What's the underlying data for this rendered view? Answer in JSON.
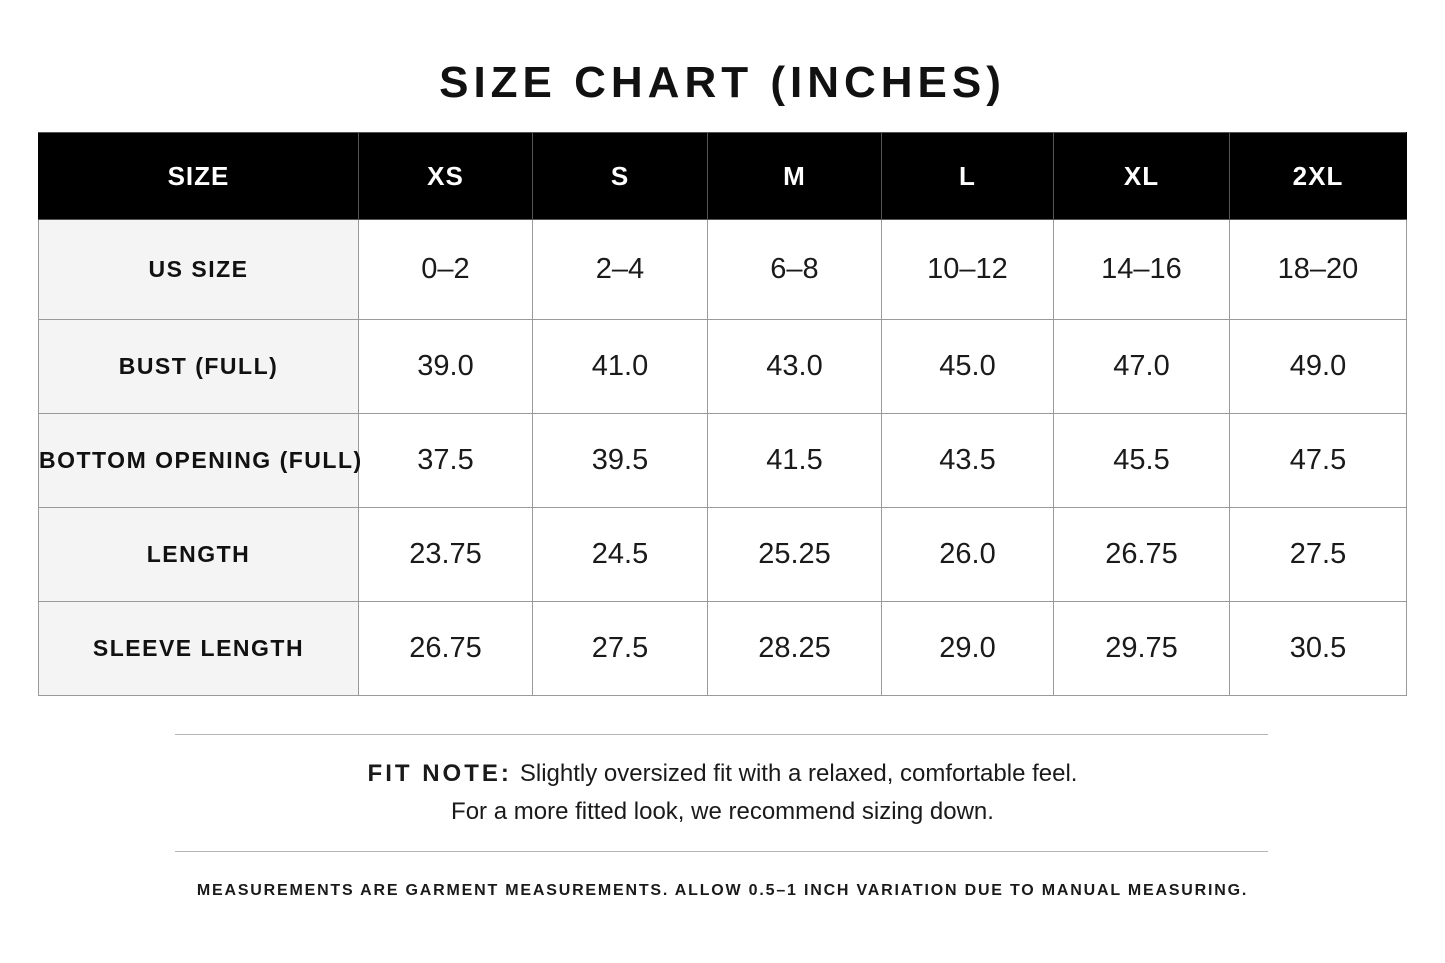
{
  "title": "SIZE CHART (INCHES)",
  "table": {
    "header": [
      "SIZE",
      "XS",
      "S",
      "M",
      "L",
      "XL",
      "2XL"
    ],
    "rows": [
      {
        "label": "US SIZE",
        "values": [
          "0–2",
          "2–4",
          "6–8",
          "10–12",
          "14–16",
          "18–20"
        ]
      },
      {
        "label": "BUST (FULL)",
        "values": [
          "39.0",
          "41.0",
          "43.0",
          "45.0",
          "47.0",
          "49.0"
        ]
      },
      {
        "label": "BOTTOM OPENING (FULL)",
        "values": [
          "37.5",
          "39.5",
          "41.5",
          "43.5",
          "45.5",
          "47.5"
        ]
      },
      {
        "label": "LENGTH",
        "values": [
          "23.75",
          "24.5",
          "25.25",
          "26.0",
          "26.75",
          "27.5"
        ]
      },
      {
        "label": "SLEEVE LENGTH",
        "values": [
          "26.75",
          "27.5",
          "28.25",
          "29.0",
          "29.75",
          "30.5"
        ]
      }
    ]
  },
  "fit_note": {
    "label": "FIT NOTE:",
    "line1": "Slightly oversized fit with a relaxed, comfortable feel.",
    "line2": "For a more fitted look, we recommend sizing down."
  },
  "footnote": "MEASUREMENTS ARE GARMENT MEASUREMENTS. ALLOW 0.5–1 INCH VARIATION DUE TO MANUAL MEASURING."
}
